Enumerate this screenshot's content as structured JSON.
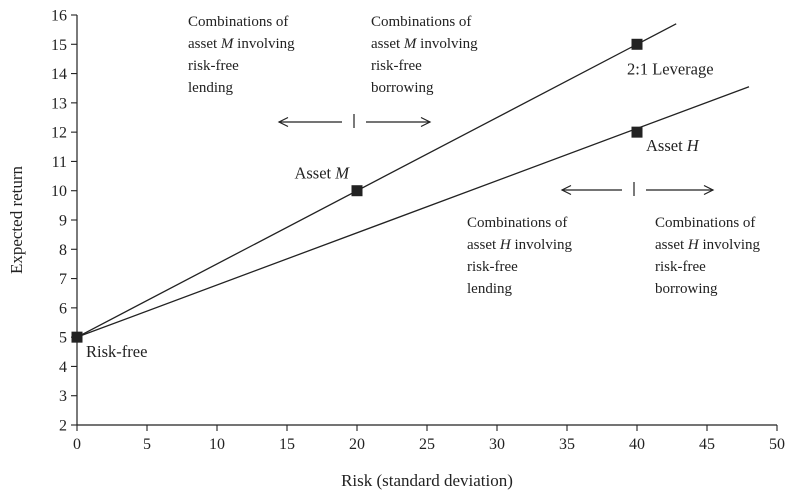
{
  "chart_data": {
    "type": "line",
    "xlabel": "Risk (standard deviation)",
    "ylabel": "Expected return",
    "xlim": [
      0,
      50
    ],
    "ylim": [
      2,
      16
    ],
    "xticks": [
      0,
      5,
      10,
      15,
      20,
      25,
      30,
      35,
      40,
      45,
      50
    ],
    "yticks": [
      2,
      3,
      4,
      5,
      6,
      7,
      8,
      9,
      10,
      11,
      12,
      13,
      14,
      15,
      16
    ],
    "grid": false,
    "series": [
      {
        "x": [
          0,
          42.8
        ],
        "y": [
          5,
          15.7
        ]
      },
      {
        "x": [
          0,
          48
        ],
        "y": [
          5,
          13.55
        ]
      }
    ],
    "points": [
      {
        "label": "Risk-free",
        "x": 0,
        "y": 5
      },
      {
        "label": "Asset M",
        "x": 20,
        "y": 10
      },
      {
        "label": "2:1 Leverage",
        "x": 40,
        "y": 15
      },
      {
        "label": "Asset H",
        "x": 40,
        "y": 12
      }
    ],
    "point_label_parts": {
      "asset_m_prefix": "Asset ",
      "asset_m_italic": "M",
      "asset_h_prefix": "Asset ",
      "asset_h_italic": "H"
    },
    "annotations": [
      {
        "lines": [
          "Combinations of",
          "asset M involving",
          "risk-free",
          "lending"
        ]
      },
      {
        "lines": [
          "Combinations of",
          "asset M involving",
          "risk-free",
          "borrowing"
        ]
      },
      {
        "lines": [
          "Combinations of",
          "asset H involving",
          "risk-free",
          "lending"
        ]
      },
      {
        "lines": [
          "Combinations of",
          "asset H involving",
          "risk-free",
          "borrowing"
        ]
      }
    ]
  }
}
